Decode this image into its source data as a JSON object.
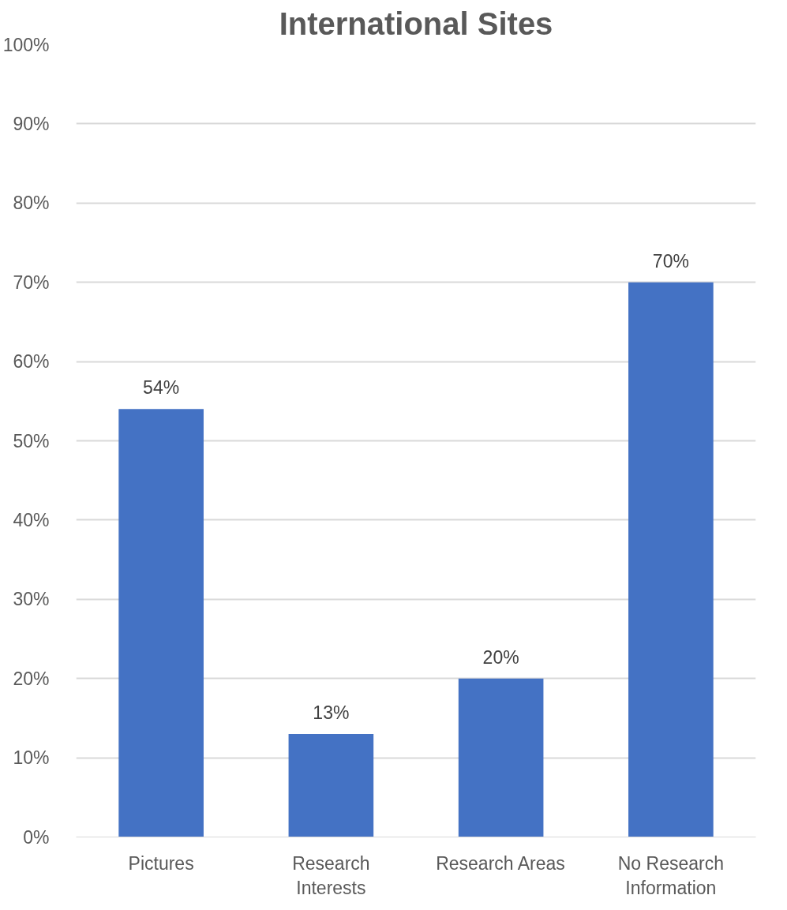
{
  "chart_data": {
    "type": "bar",
    "title": "International Sites",
    "categories": [
      "Pictures",
      "Research Interests",
      "Research Areas",
      "No Research Information"
    ],
    "values": [
      54,
      13,
      20,
      70
    ],
    "value_labels": [
      "54%",
      "13%",
      "20%",
      "70%"
    ],
    "color": "#4472c4",
    "ylim": [
      0,
      100
    ],
    "yticks": [
      {
        "value": 0,
        "label": "0%"
      },
      {
        "value": 10,
        "label": "10%"
      },
      {
        "value": 20,
        "label": "20%"
      },
      {
        "value": 30,
        "label": "30%"
      },
      {
        "value": 40,
        "label": "40%"
      },
      {
        "value": 50,
        "label": "50%"
      },
      {
        "value": 60,
        "label": "60%"
      },
      {
        "value": 70,
        "label": "70%"
      },
      {
        "value": 80,
        "label": "80%"
      },
      {
        "value": 90,
        "label": "90%"
      },
      {
        "value": 100,
        "label": "100%"
      }
    ],
    "grid": "y"
  }
}
